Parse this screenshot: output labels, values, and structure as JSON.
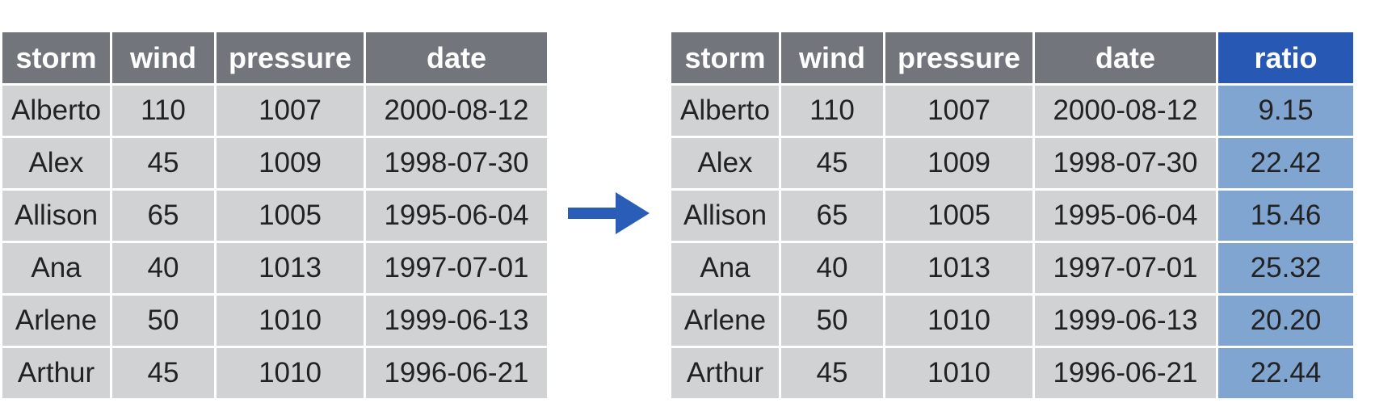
{
  "colors": {
    "header_bg": "#72757b",
    "cell_bg": "#d1d2d4",
    "new_header_bg": "#2758b4",
    "new_cell_bg": "#80a5d1",
    "arrow": "#2a5db8"
  },
  "arrow_icon": "arrow-right-icon",
  "left_table": {
    "columns": [
      "storm",
      "wind",
      "pressure",
      "date"
    ],
    "rows": [
      [
        "Alberto",
        "110",
        "1007",
        "2000-08-12"
      ],
      [
        "Alex",
        "45",
        "1009",
        "1998-07-30"
      ],
      [
        "Allison",
        "65",
        "1005",
        "1995-06-04"
      ],
      [
        "Ana",
        "40",
        "1013",
        "1997-07-01"
      ],
      [
        "Arlene",
        "50",
        "1010",
        "1999-06-13"
      ],
      [
        "Arthur",
        "45",
        "1010",
        "1996-06-21"
      ]
    ]
  },
  "right_table": {
    "columns": [
      "storm",
      "wind",
      "pressure",
      "date",
      "ratio"
    ],
    "rows": [
      [
        "Alberto",
        "110",
        "1007",
        "2000-08-12",
        "9.15"
      ],
      [
        "Alex",
        "45",
        "1009",
        "1998-07-30",
        "22.42"
      ],
      [
        "Allison",
        "65",
        "1005",
        "1995-06-04",
        "15.46"
      ],
      [
        "Ana",
        "40",
        "1013",
        "1997-07-01",
        "25.32"
      ],
      [
        "Arlene",
        "50",
        "1010",
        "1999-06-13",
        "20.20"
      ],
      [
        "Arthur",
        "45",
        "1010",
        "1996-06-21",
        "22.44"
      ]
    ]
  }
}
